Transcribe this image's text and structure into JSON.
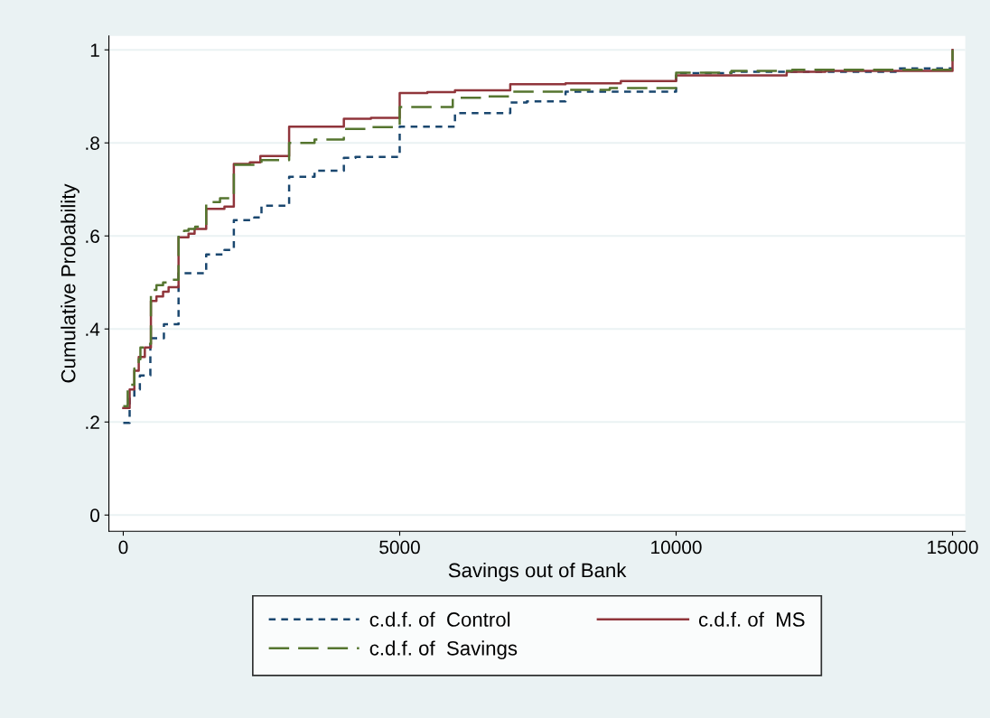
{
  "chart_data": {
    "type": "step",
    "xlabel": "Savings out of Bank",
    "ylabel": "Cumulative Probability",
    "xlim": [
      -260,
      15230
    ],
    "ylim": [
      -0.035,
      1.03
    ],
    "xticks": [
      0,
      5000,
      10000,
      15000
    ],
    "yticks": [
      {
        "value": 0,
        "label": "0"
      },
      {
        "value": 0.2,
        "label": ".2"
      },
      {
        "value": 0.4,
        "label": ".4"
      },
      {
        "value": 0.6,
        "label": ".6"
      },
      {
        "value": 0.8,
        "label": ".8"
      },
      {
        "value": 1,
        "label": "1"
      }
    ],
    "grid": "y",
    "legend": "bottom",
    "series": [
      {
        "name": "c.d.f. of  Control",
        "color": "#1a476f",
        "line_style": "dotted",
        "x": [
          0,
          115,
          200,
          300,
          490,
          735,
          1000,
          1500,
          1830,
          2000,
          2370,
          2500,
          3000,
          3460,
          3990,
          4200,
          5000,
          6000,
          7000,
          7300,
          8000,
          10000,
          11000,
          14000,
          15000
        ],
        "values": [
          0.198,
          0.25,
          0.27,
          0.3,
          0.38,
          0.41,
          0.52,
          0.56,
          0.57,
          0.634,
          0.64,
          0.665,
          0.727,
          0.74,
          0.768,
          0.77,
          0.835,
          0.864,
          0.887,
          0.889,
          0.91,
          0.95,
          0.953,
          0.96,
          0.96
        ]
      },
      {
        "name": "c.d.f. of  MS",
        "color": "#90353b",
        "line_style": "solid",
        "x": [
          0,
          115,
          200,
          280,
          390,
          500,
          600,
          720,
          820,
          1000,
          1180,
          1290,
          1500,
          1830,
          2000,
          2290,
          2480,
          3000,
          3990,
          4480,
          5000,
          5500,
          6000,
          7000,
          8000,
          9000,
          10000,
          12000,
          12700,
          15000
        ],
        "values": [
          0.23,
          0.27,
          0.31,
          0.34,
          0.36,
          0.46,
          0.47,
          0.48,
          0.49,
          0.597,
          0.605,
          0.615,
          0.658,
          0.663,
          0.755,
          0.758,
          0.772,
          0.835,
          0.852,
          0.854,
          0.907,
          0.909,
          0.913,
          0.926,
          0.928,
          0.933,
          0.945,
          0.953,
          0.955,
          1.0
        ]
      },
      {
        "name": "c.d.f. of  Savings",
        "color": "#55752f",
        "line_style": "dashed",
        "x": [
          0,
          80,
          200,
          280,
          310,
          390,
          500,
          600,
          720,
          820,
          1000,
          1100,
          1180,
          1300,
          1500,
          1750,
          2000,
          2500,
          3000,
          3460,
          3990,
          4480,
          5000,
          5960,
          6520,
          7000,
          8000,
          8800,
          10000,
          11000,
          12100,
          15000
        ],
        "values": [
          0.234,
          0.28,
          0.315,
          0.335,
          0.36,
          0.368,
          0.484,
          0.494,
          0.5,
          0.506,
          0.607,
          0.611,
          0.615,
          0.62,
          0.673,
          0.681,
          0.753,
          0.763,
          0.8,
          0.807,
          0.83,
          0.834,
          0.877,
          0.897,
          0.9,
          0.91,
          0.914,
          0.918,
          0.951,
          0.955,
          0.957,
          1.0
        ]
      }
    ]
  }
}
